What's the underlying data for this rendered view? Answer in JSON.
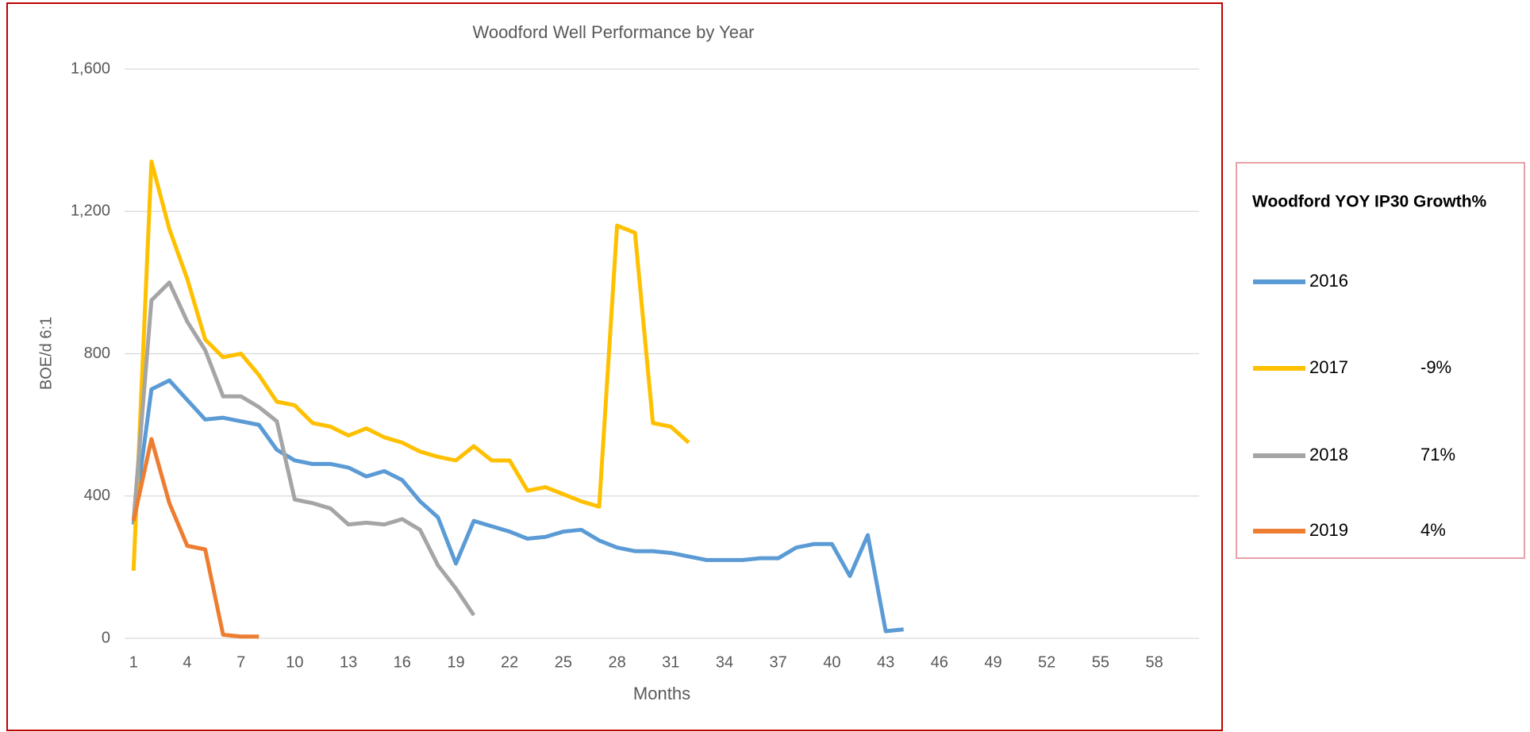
{
  "chart_data": {
    "type": "line",
    "title": "Woodford Well Performance by Year",
    "x_label": "Months",
    "y_label": "BOE/d  6:1",
    "legend_title": "Woodford YOY IP30 Growth%",
    "x": [
      1,
      2,
      3,
      4,
      5,
      6,
      7,
      8,
      9,
      10,
      11,
      12,
      13,
      14,
      15,
      16,
      17,
      18,
      19,
      20,
      21,
      22,
      23,
      24,
      25,
      26,
      27,
      28,
      29,
      30,
      31,
      32,
      33,
      34,
      35,
      36,
      37,
      38,
      39,
      40,
      41,
      42,
      43,
      44
    ],
    "series": [
      {
        "name": "2016",
        "color": "#5b9bd5",
        "values": [
          320,
          700,
          725,
          670,
          615,
          620,
          610,
          600,
          530,
          500,
          490,
          490,
          480,
          455,
          470,
          445,
          385,
          340,
          210,
          330,
          315,
          300,
          280,
          285,
          300,
          305,
          275,
          255,
          245,
          245,
          240,
          230,
          220,
          220,
          220,
          225,
          225,
          255,
          265,
          265,
          175,
          290,
          20,
          25
        ]
      },
      {
        "name": "2017",
        "color": "#ffc000",
        "growth": "-9%",
        "values": [
          190,
          1340,
          1150,
          1010,
          840,
          790,
          800,
          740,
          665,
          655,
          605,
          595,
          570,
          590,
          565,
          550,
          525,
          510,
          500,
          540,
          500,
          500,
          415,
          425,
          405,
          385,
          370,
          1160,
          1140,
          605,
          595,
          550,
          null,
          null,
          null,
          null,
          null,
          null,
          null,
          null,
          null,
          null,
          null,
          null
        ]
      },
      {
        "name": "2018",
        "color": "#a5a5a5",
        "growth": "71%",
        "values": [
          330,
          950,
          1000,
          890,
          810,
          680,
          680,
          650,
          610,
          390,
          380,
          365,
          320,
          325,
          320,
          335,
          305,
          205,
          140,
          65,
          null,
          null,
          null,
          null,
          null,
          null,
          null,
          null,
          null,
          null,
          null,
          null,
          null,
          null,
          null,
          null,
          null,
          null,
          null,
          null,
          null,
          null,
          null,
          null
        ]
      },
      {
        "name": "2019",
        "color": "#ed7d31",
        "growth": "4%",
        "values": [
          330,
          560,
          380,
          260,
          250,
          10,
          5,
          5,
          null,
          null,
          null,
          null,
          null,
          null,
          null,
          null,
          null,
          null,
          null,
          null,
          null,
          null,
          null,
          null,
          null,
          null,
          null,
          null,
          null,
          null,
          null,
          null,
          null,
          null,
          null,
          null,
          null,
          null,
          null,
          null,
          null,
          null,
          null,
          null
        ]
      }
    ],
    "xlim": [
      0.5,
      60.5
    ],
    "xticks": [
      1,
      4,
      7,
      10,
      13,
      16,
      19,
      22,
      25,
      28,
      31,
      34,
      37,
      40,
      43,
      46,
      49,
      52,
      55,
      58
    ],
    "ylim": [
      0,
      1600
    ],
    "yticks": [
      0,
      {
        "value": 400,
        "label": "400"
      },
      {
        "value": 800,
        "label": "800"
      },
      {
        "value": 1200,
        "label": "1,200"
      },
      {
        "value": 1600,
        "label": "1,600"
      }
    ],
    "grid": true
  }
}
